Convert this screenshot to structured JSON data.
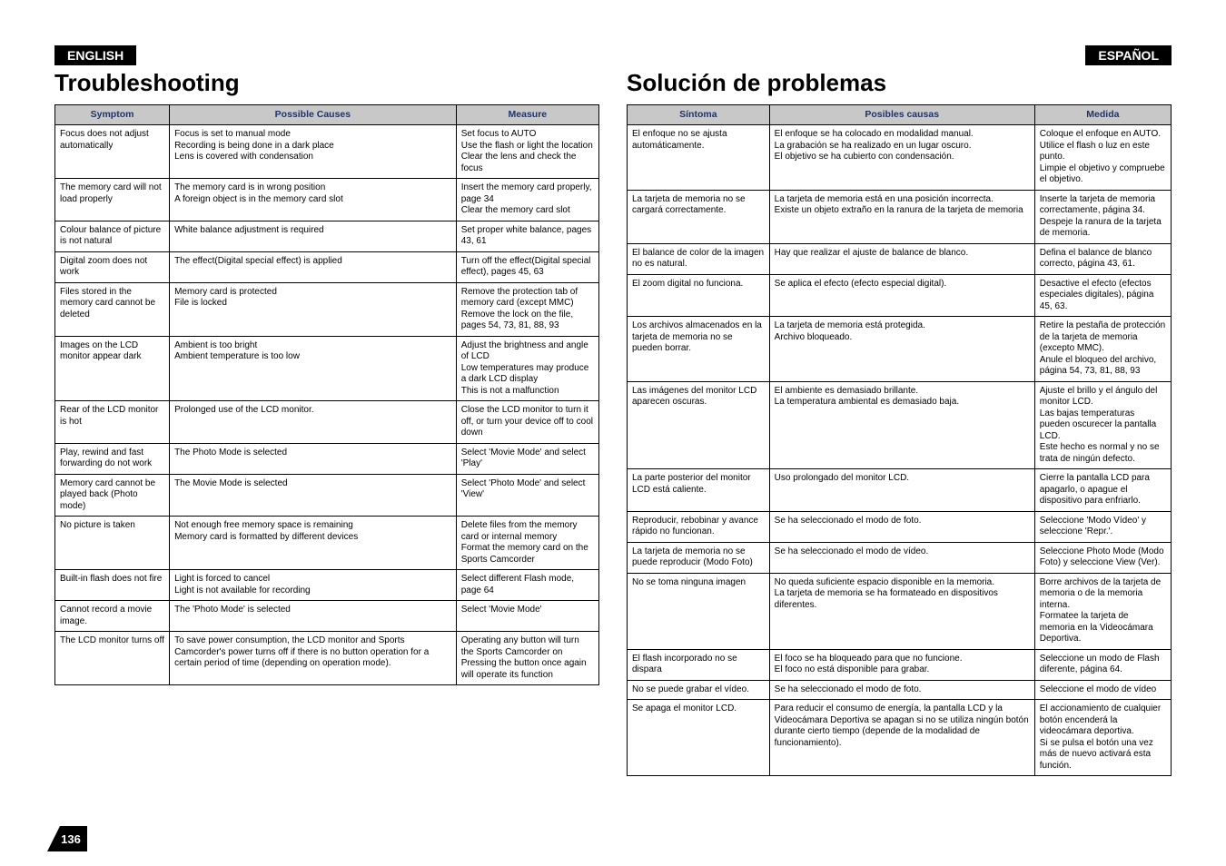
{
  "left": {
    "lang": "ENGLISH",
    "title": "Troubleshooting",
    "headers": [
      "Symptom",
      "Possible Causes",
      "Measure"
    ],
    "rows": [
      [
        "Focus does not adjust automatically",
        "Focus is set to manual mode\nRecording is being done in a dark place\nLens is covered with condensation",
        "Set focus to AUTO\nUse the flash or light the location\nClear the lens and check the focus"
      ],
      [
        "The memory card will not load properly",
        "The memory card is in wrong position\nA foreign object is in the memory card slot",
        "Insert the memory card properly, page 34\nClear the memory card slot"
      ],
      [
        "Colour balance of picture is not natural",
        "White balance adjustment is required",
        "Set proper white balance, pages 43, 61"
      ],
      [
        "Digital zoom does not work",
        "The effect(Digital special effect) is applied",
        "Turn off the effect(Digital special effect), pages 45, 63"
      ],
      [
        "Files stored in the memory card cannot be deleted",
        "Memory card  is protected\nFile is locked",
        "Remove the protection tab of memory card (except MMC)\nRemove the lock on the file, pages 54, 73, 81, 88, 93"
      ],
      [
        "Images on the LCD monitor appear dark",
        "Ambient is too bright\nAmbient temperature is too low",
        "Adjust the brightness and angle of LCD\nLow temperatures may produce a dark LCD display\nThis is not a malfunction"
      ],
      [
        "Rear of the LCD monitor is hot",
        "Prolonged use of the LCD monitor.",
        "Close the LCD monitor to turn it off, or turn your device off to cool down"
      ],
      [
        "Play, rewind and fast forwarding do not work",
        "The Photo Mode is selected",
        "Select 'Movie Mode' and select 'Play'"
      ],
      [
        "Memory card cannot be played back (Photo mode)",
        "The Movie Mode is selected",
        "Select 'Photo Mode' and select 'View'"
      ],
      [
        "No picture is taken",
        "Not enough free memory space is remaining\nMemory card is formatted by different devices",
        "Delete files from the memory card or internal memory\nFormat the memory card on the Sports Camcorder"
      ],
      [
        "Built-in flash does not fire",
        "Light is forced to cancel\nLight is not available for recording",
        "Select different Flash mode, page 64"
      ],
      [
        "Cannot record a movie image.",
        "The 'Photo Mode' is selected",
        "Select 'Movie Mode'"
      ],
      [
        "The LCD monitor turns off",
        "To save power consumption, the LCD monitor and Sports Camcorder's power turns off if there is no button operation for a certain period of time (depending on operation mode).",
        "Operating any button will turn the Sports Camcorder on\nPressing the button once again will operate its function"
      ]
    ]
  },
  "right": {
    "lang": "ESPAÑOL",
    "title": "Solución de problemas",
    "headers": [
      "Síntoma",
      "Posibles causas",
      "Medida"
    ],
    "rows": [
      [
        "El enfoque no se ajusta automáticamente.",
        "El enfoque se ha colocado en modalidad manual.\nLa grabación se ha realizado en un lugar oscuro.\nEl objetivo se ha cubierto con condensación.",
        "Coloque el enfoque en AUTO.\nUtilice el flash o luz en este punto.\nLimpie el objetivo y compruebe el objetivo."
      ],
      [
        "La tarjeta de memoria no se cargará correctamente.",
        "La tarjeta de memoria está en una posición incorrecta.\nExiste un objeto extraño en la ranura de la tarjeta de memoria",
        "Inserte la tarjeta de memoria correctamente, página 34.\nDespeje la ranura de la tarjeta de memoria."
      ],
      [
        "El balance de color de la imagen no es natural.",
        "Hay que realizar el ajuste de balance de blanco.",
        "Defina el balance de blanco correcto, página 43, 61."
      ],
      [
        "El zoom digital no funciona.",
        "Se aplica el efecto (efecto especial digital).",
        "Desactive el efecto (efectos especiales digitales), página 45, 63."
      ],
      [
        "Los archivos almacenados en la tarjeta de memoria no se pueden borrar.",
        "La tarjeta de memoria está protegida.\nArchivo bloqueado.",
        "Retire la pestaña de protección de la tarjeta de memoria (excepto MMC).\nAnule el bloqueo del archivo, página 54, 73, 81, 88, 93"
      ],
      [
        "Las imágenes del monitor LCD aparecen oscuras.",
        "El ambiente es demasiado brillante.\nLa temperatura ambiental es demasiado baja.",
        "Ajuste el brillo y el ángulo del monitor LCD.\nLas bajas temperaturas pueden oscurecer la pantalla LCD.\nEste hecho es normal y no se trata de ningún defecto."
      ],
      [
        "La parte posterior del monitor LCD está caliente.",
        "Uso prolongado del monitor LCD.",
        "Cierre la pantalla LCD para apagarlo, o apague el dispositivo para enfriarlo."
      ],
      [
        "Reproducir, rebobinar y avance rápido no funcionan.",
        "Se ha seleccionado el modo de foto.",
        "Seleccione 'Modo Vídeo' y seleccione 'Repr.'."
      ],
      [
        "La tarjeta de memoria no se puede reproducir (Modo Foto)",
        "Se ha seleccionado el modo de vídeo.",
        "Seleccione Photo Mode (Modo Foto) y seleccione View (Ver)."
      ],
      [
        "No se toma ninguna imagen",
        "No queda suficiente espacio disponible en la memoria.\nLa tarjeta de memoria se ha formateado en dispositivos diferentes.",
        "Borre archivos de la tarjeta de memoria o de la memoria interna.\nFormatee la tarjeta de memoria en la Videocámara Deportiva."
      ],
      [
        "El flash incorporado no se dispara",
        "El foco se ha bloqueado para que no funcione.\nEl foco no está disponible para grabar.",
        "Seleccione un modo de Flash diferente, página 64."
      ],
      [
        "No se puede grabar el vídeo.",
        "Se ha seleccionado el modo de foto.",
        "Seleccione el modo de vídeo"
      ],
      [
        "Se apaga el monitor LCD.",
        "Para reducir el consumo de energía, la pantalla LCD y la Videocámara Deportiva se apagan si no se utiliza ningún botón durante cierto tiempo (depende de la modalidad de funcionamiento).",
        "El accionamiento de cualquier botón encenderá la videocámara deportiva.\nSi se pulsa el botón una vez más de nuevo activará esta función."
      ]
    ]
  },
  "page_number": "136",
  "colors": {
    "header_bg": "#c8c8c8",
    "header_fg": "#223366",
    "badge_bg": "#000",
    "badge_fg": "#fff"
  }
}
